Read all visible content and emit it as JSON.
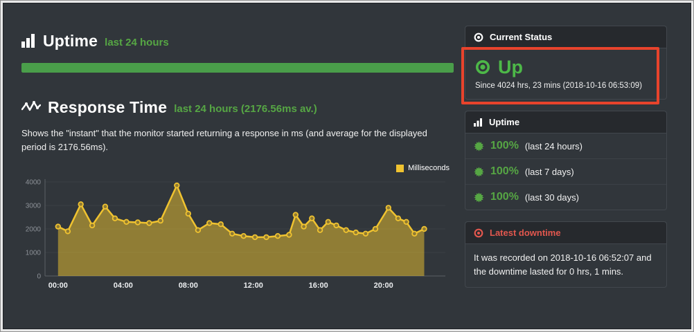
{
  "theme": {
    "bg": "#31363b",
    "header_bg": "#26292d",
    "border": "#42474d",
    "text": "#f1f1f1",
    "green": "#56a644",
    "bar_green": "#4a9e4a",
    "up_green": "#4db848",
    "yellow": "#f0c330",
    "red": "#e2574e",
    "annotation": "#e8432c",
    "axis_text": "#8d9298",
    "grid": "#3b4046"
  },
  "main": {
    "uptime": {
      "title": "Uptime",
      "subtitle": "last 24 hours",
      "progress_percent": 100
    },
    "response": {
      "title": "Response Time",
      "subtitle": "last 24 hours (2176.56ms av.)",
      "description": "Shows the \"instant\" that the monitor started returning a response in ms (and average for the displayed period is 2176.56ms).",
      "legend_label": "Milliseconds"
    }
  },
  "chart_data": {
    "type": "line",
    "title": "Response Time",
    "xlabel": "",
    "ylabel": "Milliseconds",
    "ylim": [
      0,
      4000
    ],
    "yticks": [
      0,
      1000,
      2000,
      3000,
      4000
    ],
    "x_range_hours": [
      -0.8,
      23.8
    ],
    "xticks_hours": [
      0,
      4,
      8,
      12,
      16,
      20
    ],
    "xtick_labels": [
      "00:00",
      "04:00",
      "08:00",
      "12:00",
      "16:00",
      "20:00"
    ],
    "legend_position": "top-right",
    "grid": true,
    "average_ms": 2176.56,
    "series": [
      {
        "name": "Milliseconds",
        "x_hours": [
          0,
          0.6,
          1.4,
          2.1,
          2.9,
          3.5,
          4.2,
          4.9,
          5.6,
          6.3,
          7.3,
          8.0,
          8.6,
          9.3,
          10.0,
          10.7,
          11.4,
          12.1,
          12.8,
          13.5,
          14.2,
          14.6,
          15.1,
          15.6,
          16.1,
          16.6,
          17.1,
          17.7,
          18.3,
          18.9,
          19.5,
          20.3,
          20.9,
          21.4,
          21.9,
          22.5
        ],
        "values": [
          2100,
          1900,
          3050,
          2150,
          2950,
          2450,
          2300,
          2280,
          2250,
          2350,
          3850,
          2650,
          1950,
          2250,
          2200,
          1800,
          1700,
          1650,
          1650,
          1700,
          1750,
          2600,
          2100,
          2450,
          1950,
          2300,
          2150,
          1950,
          1850,
          1800,
          2000,
          2900,
          2450,
          2300,
          1800,
          2000
        ]
      }
    ]
  },
  "sidebar": {
    "current_status": {
      "header": "Current Status",
      "status": "Up",
      "since": "Since 4024 hrs, 23 mins (2018-10-16 06:53:09)"
    },
    "uptime": {
      "header": "Uptime",
      "rows": [
        {
          "percent": "100%",
          "label": "(last 24 hours)"
        },
        {
          "percent": "100%",
          "label": "(last 7 days)"
        },
        {
          "percent": "100%",
          "label": "(last 30 days)"
        }
      ]
    },
    "latest_downtime": {
      "header": "Latest downtime",
      "text": "It was recorded on 2018-10-16 06:52:07 and the downtime lasted for 0 hrs, 1 mins."
    }
  }
}
